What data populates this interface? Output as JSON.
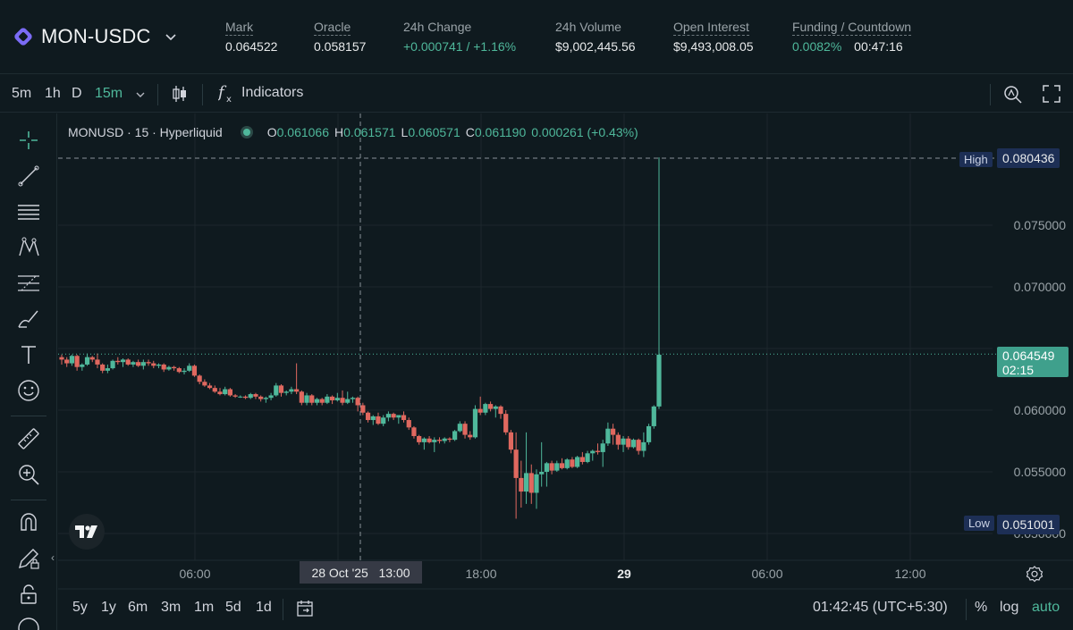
{
  "header": {
    "pair": "MON-USDC",
    "stats": [
      {
        "label": "Mark",
        "value": "0.064522"
      },
      {
        "label": "Oracle",
        "value": "0.058157"
      },
      {
        "label": "24h Change",
        "value": "+0.000741 / +1.16%"
      },
      {
        "label": "24h Volume",
        "value": "$9,002,445.56"
      },
      {
        "label": "Open Interest",
        "value": "$9,493,008.05"
      },
      {
        "label": "Funding / Countdown",
        "value": "0.0082%",
        "value2": "00:47:16"
      }
    ]
  },
  "toolbar": {
    "intervals": [
      "5m",
      "1h",
      "D",
      "15m"
    ],
    "active_interval": "15m",
    "indicators_label": "Indicators"
  },
  "legend": {
    "symbol": "MONUSD · 15 · Hyperliquid",
    "o_label": "O",
    "o": "0.061066",
    "h_label": "H",
    "h": "0.061571",
    "l_label": "L",
    "l": "0.060571",
    "c_label": "C",
    "c": "0.061190",
    "change": "0.000261 (+0.43%)"
  },
  "price_axis": {
    "ticks": [
      "0.075000",
      "0.070000",
      "0.060000",
      "0.055000",
      "0.050000"
    ],
    "high_label": "High",
    "high_value": "0.080436",
    "low_label": "Low",
    "low_value": "0.051001",
    "last_price": "0.064549",
    "countdown": "02:15"
  },
  "time_axis": {
    "ticks": [
      "06:00",
      "18:00",
      "29",
      "06:00",
      "12:00"
    ],
    "crosshair_label": "28 Oct '25   13:00"
  },
  "range_bar": {
    "ranges": [
      "5y",
      "1y",
      "6m",
      "3m",
      "1m",
      "5d",
      "1d"
    ],
    "clock": "01:42:45 (UTC+5:30)",
    "percent": "%",
    "log": "log",
    "auto": "auto"
  },
  "colors": {
    "up": "#4fb89b",
    "down": "#e0685f",
    "background": "#0f1a1f",
    "grid": "#1c272c",
    "tag_blue": "#1d2f55"
  },
  "chart_data": {
    "type": "candlestick",
    "y_range": [
      0.0486,
      0.0825
    ],
    "candles": [
      {
        "o": 0.0643,
        "h": 0.0645,
        "l": 0.0637,
        "c": 0.0641
      },
      {
        "o": 0.0641,
        "h": 0.0643,
        "l": 0.0635,
        "c": 0.0638
      },
      {
        "o": 0.0638,
        "h": 0.0645,
        "l": 0.0636,
        "c": 0.0644
      },
      {
        "o": 0.0644,
        "h": 0.0645,
        "l": 0.0632,
        "c": 0.0635
      },
      {
        "o": 0.0635,
        "h": 0.0638,
        "l": 0.0632,
        "c": 0.0637
      },
      {
        "o": 0.0637,
        "h": 0.0646,
        "l": 0.0636,
        "c": 0.0643
      },
      {
        "o": 0.0643,
        "h": 0.0644,
        "l": 0.0639,
        "c": 0.0641
      },
      {
        "o": 0.0641,
        "h": 0.0646,
        "l": 0.0634,
        "c": 0.0637
      },
      {
        "o": 0.0637,
        "h": 0.0638,
        "l": 0.063,
        "c": 0.0632
      },
      {
        "o": 0.0632,
        "h": 0.0637,
        "l": 0.063,
        "c": 0.0634
      },
      {
        "o": 0.0634,
        "h": 0.0641,
        "l": 0.0633,
        "c": 0.064
      },
      {
        "o": 0.064,
        "h": 0.0643,
        "l": 0.0637,
        "c": 0.0639
      },
      {
        "o": 0.0639,
        "h": 0.0642,
        "l": 0.0635,
        "c": 0.0641
      },
      {
        "o": 0.0641,
        "h": 0.0642,
        "l": 0.0636,
        "c": 0.0637
      },
      {
        "o": 0.0637,
        "h": 0.064,
        "l": 0.0635,
        "c": 0.0639
      },
      {
        "o": 0.0639,
        "h": 0.0641,
        "l": 0.0635,
        "c": 0.0636
      },
      {
        "o": 0.0636,
        "h": 0.0641,
        "l": 0.0633,
        "c": 0.0639
      },
      {
        "o": 0.0639,
        "h": 0.0641,
        "l": 0.0636,
        "c": 0.0638
      },
      {
        "o": 0.0638,
        "h": 0.064,
        "l": 0.0634,
        "c": 0.0636
      },
      {
        "o": 0.0636,
        "h": 0.0638,
        "l": 0.0634,
        "c": 0.0637
      },
      {
        "o": 0.0637,
        "h": 0.0638,
        "l": 0.0631,
        "c": 0.0633
      },
      {
        "o": 0.0633,
        "h": 0.0636,
        "l": 0.0632,
        "c": 0.0635
      },
      {
        "o": 0.0635,
        "h": 0.0636,
        "l": 0.0632,
        "c": 0.0634
      },
      {
        "o": 0.0634,
        "h": 0.0635,
        "l": 0.063,
        "c": 0.0631
      },
      {
        "o": 0.0631,
        "h": 0.0634,
        "l": 0.0629,
        "c": 0.0632
      },
      {
        "o": 0.0632,
        "h": 0.0638,
        "l": 0.0631,
        "c": 0.0636
      },
      {
        "o": 0.0636,
        "h": 0.0637,
        "l": 0.0627,
        "c": 0.0628
      },
      {
        "o": 0.0628,
        "h": 0.0629,
        "l": 0.0621,
        "c": 0.0623
      },
      {
        "o": 0.0623,
        "h": 0.0625,
        "l": 0.0619,
        "c": 0.062
      },
      {
        "o": 0.062,
        "h": 0.0622,
        "l": 0.0617,
        "c": 0.0618
      },
      {
        "o": 0.0618,
        "h": 0.062,
        "l": 0.0614,
        "c": 0.0615
      },
      {
        "o": 0.0615,
        "h": 0.0618,
        "l": 0.0612,
        "c": 0.0613
      },
      {
        "o": 0.0613,
        "h": 0.0619,
        "l": 0.0612,
        "c": 0.0617
      },
      {
        "o": 0.0617,
        "h": 0.0618,
        "l": 0.0611,
        "c": 0.0612
      },
      {
        "o": 0.0612,
        "h": 0.0613,
        "l": 0.061,
        "c": 0.0611
      },
      {
        "o": 0.0611,
        "h": 0.0612,
        "l": 0.061,
        "c": 0.0611
      },
      {
        "o": 0.0611,
        "h": 0.0612,
        "l": 0.0609,
        "c": 0.061
      },
      {
        "o": 0.061,
        "h": 0.0614,
        "l": 0.0609,
        "c": 0.0613
      },
      {
        "o": 0.0613,
        "h": 0.0614,
        "l": 0.0609,
        "c": 0.0611
      },
      {
        "o": 0.0611,
        "h": 0.0612,
        "l": 0.0607,
        "c": 0.0609
      },
      {
        "o": 0.0609,
        "h": 0.0611,
        "l": 0.0606,
        "c": 0.061
      },
      {
        "o": 0.061,
        "h": 0.0614,
        "l": 0.0608,
        "c": 0.0612
      },
      {
        "o": 0.0612,
        "h": 0.0622,
        "l": 0.0611,
        "c": 0.062
      },
      {
        "o": 0.062,
        "h": 0.0621,
        "l": 0.0611,
        "c": 0.0614
      },
      {
        "o": 0.0614,
        "h": 0.0616,
        "l": 0.0612,
        "c": 0.0615
      },
      {
        "o": 0.0615,
        "h": 0.0619,
        "l": 0.0613,
        "c": 0.0617
      },
      {
        "o": 0.0617,
        "h": 0.0638,
        "l": 0.0613,
        "c": 0.0615
      },
      {
        "o": 0.0615,
        "h": 0.0616,
        "l": 0.0604,
        "c": 0.0606
      },
      {
        "o": 0.0606,
        "h": 0.0614,
        "l": 0.0604,
        "c": 0.0612
      },
      {
        "o": 0.0612,
        "h": 0.0613,
        "l": 0.0604,
        "c": 0.0606
      },
      {
        "o": 0.0606,
        "h": 0.061,
        "l": 0.0604,
        "c": 0.0609
      },
      {
        "o": 0.0609,
        "h": 0.061,
        "l": 0.0604,
        "c": 0.0606
      },
      {
        "o": 0.0606,
        "h": 0.0613,
        "l": 0.0605,
        "c": 0.0611
      },
      {
        "o": 0.0611,
        "h": 0.0612,
        "l": 0.0605,
        "c": 0.0608
      },
      {
        "o": 0.0608,
        "h": 0.0614,
        "l": 0.0607,
        "c": 0.061
      },
      {
        "o": 0.061,
        "h": 0.0616,
        "l": 0.0604,
        "c": 0.0606
      },
      {
        "o": 0.0606,
        "h": 0.0615,
        "l": 0.0605,
        "c": 0.0609
      },
      {
        "o": 0.0609,
        "h": 0.0611,
        "l": 0.0606,
        "c": 0.061
      },
      {
        "o": 0.061,
        "h": 0.0611,
        "l": 0.0599,
        "c": 0.0604
      },
      {
        "o": 0.0604,
        "h": 0.0606,
        "l": 0.0596,
        "c": 0.0598
      },
      {
        "o": 0.0598,
        "h": 0.0599,
        "l": 0.059,
        "c": 0.0592
      },
      {
        "o": 0.0592,
        "h": 0.0596,
        "l": 0.0588,
        "c": 0.0595
      },
      {
        "o": 0.0595,
        "h": 0.0598,
        "l": 0.0588,
        "c": 0.0589
      },
      {
        "o": 0.0589,
        "h": 0.0596,
        "l": 0.0587,
        "c": 0.0594
      },
      {
        "o": 0.0594,
        "h": 0.0599,
        "l": 0.0591,
        "c": 0.0597
      },
      {
        "o": 0.0597,
        "h": 0.0598,
        "l": 0.0592,
        "c": 0.0594
      },
      {
        "o": 0.0594,
        "h": 0.0596,
        "l": 0.0589,
        "c": 0.0596
      },
      {
        "o": 0.0596,
        "h": 0.0599,
        "l": 0.059,
        "c": 0.0592
      },
      {
        "o": 0.0592,
        "h": 0.0594,
        "l": 0.0584,
        "c": 0.0586
      },
      {
        "o": 0.0586,
        "h": 0.0587,
        "l": 0.0577,
        "c": 0.0579
      },
      {
        "o": 0.0579,
        "h": 0.058,
        "l": 0.0572,
        "c": 0.0574
      },
      {
        "o": 0.0574,
        "h": 0.0578,
        "l": 0.0568,
        "c": 0.0577
      },
      {
        "o": 0.0577,
        "h": 0.0579,
        "l": 0.0573,
        "c": 0.0574
      },
      {
        "o": 0.0574,
        "h": 0.0578,
        "l": 0.0566,
        "c": 0.0576
      },
      {
        "o": 0.0576,
        "h": 0.0578,
        "l": 0.0573,
        "c": 0.0575
      },
      {
        "o": 0.0575,
        "h": 0.0578,
        "l": 0.0573,
        "c": 0.0577
      },
      {
        "o": 0.0577,
        "h": 0.0578,
        "l": 0.0574,
        "c": 0.0576
      },
      {
        "o": 0.0576,
        "h": 0.0584,
        "l": 0.0575,
        "c": 0.0583
      },
      {
        "o": 0.0583,
        "h": 0.0591,
        "l": 0.0582,
        "c": 0.0589
      },
      {
        "o": 0.0589,
        "h": 0.0591,
        "l": 0.0577,
        "c": 0.058
      },
      {
        "o": 0.058,
        "h": 0.0583,
        "l": 0.0576,
        "c": 0.0578
      },
      {
        "o": 0.0578,
        "h": 0.0604,
        "l": 0.0577,
        "c": 0.0601
      },
      {
        "o": 0.0601,
        "h": 0.0611,
        "l": 0.0596,
        "c": 0.0598
      },
      {
        "o": 0.0598,
        "h": 0.0606,
        "l": 0.0596,
        "c": 0.0605
      },
      {
        "o": 0.0605,
        "h": 0.0607,
        "l": 0.0599,
        "c": 0.0601
      },
      {
        "o": 0.0601,
        "h": 0.0604,
        "l": 0.0594,
        "c": 0.0603
      },
      {
        "o": 0.0603,
        "h": 0.0604,
        "l": 0.0593,
        "c": 0.0597
      },
      {
        "o": 0.0597,
        "h": 0.06,
        "l": 0.058,
        "c": 0.0582
      },
      {
        "o": 0.0582,
        "h": 0.0584,
        "l": 0.0565,
        "c": 0.0568
      },
      {
        "o": 0.0568,
        "h": 0.0582,
        "l": 0.0512,
        "c": 0.0545
      },
      {
        "o": 0.0545,
        "h": 0.0559,
        "l": 0.0521,
        "c": 0.0534
      },
      {
        "o": 0.0534,
        "h": 0.0582,
        "l": 0.0524,
        "c": 0.0549
      },
      {
        "o": 0.0549,
        "h": 0.0556,
        "l": 0.0524,
        "c": 0.0533
      },
      {
        "o": 0.0533,
        "h": 0.0552,
        "l": 0.052,
        "c": 0.0548
      },
      {
        "o": 0.0548,
        "h": 0.0574,
        "l": 0.0538,
        "c": 0.055
      },
      {
        "o": 0.055,
        "h": 0.0558,
        "l": 0.0538,
        "c": 0.0557
      },
      {
        "o": 0.0557,
        "h": 0.0559,
        "l": 0.0548,
        "c": 0.0551
      },
      {
        "o": 0.0551,
        "h": 0.0559,
        "l": 0.055,
        "c": 0.0557
      },
      {
        "o": 0.0557,
        "h": 0.0561,
        "l": 0.0552,
        "c": 0.0553
      },
      {
        "o": 0.0553,
        "h": 0.0561,
        "l": 0.0552,
        "c": 0.056
      },
      {
        "o": 0.056,
        "h": 0.0562,
        "l": 0.0553,
        "c": 0.0554
      },
      {
        "o": 0.0554,
        "h": 0.0563,
        "l": 0.0553,
        "c": 0.0562
      },
      {
        "o": 0.0562,
        "h": 0.0566,
        "l": 0.0556,
        "c": 0.0558
      },
      {
        "o": 0.0558,
        "h": 0.0567,
        "l": 0.0557,
        "c": 0.0565
      },
      {
        "o": 0.0565,
        "h": 0.0568,
        "l": 0.0559,
        "c": 0.0567
      },
      {
        "o": 0.0567,
        "h": 0.0573,
        "l": 0.0564,
        "c": 0.0566
      },
      {
        "o": 0.0566,
        "h": 0.0576,
        "l": 0.0554,
        "c": 0.0573
      },
      {
        "o": 0.0573,
        "h": 0.059,
        "l": 0.0571,
        "c": 0.0585
      },
      {
        "o": 0.0585,
        "h": 0.0589,
        "l": 0.0572,
        "c": 0.058
      },
      {
        "o": 0.058,
        "h": 0.0582,
        "l": 0.0568,
        "c": 0.0572
      },
      {
        "o": 0.0572,
        "h": 0.0579,
        "l": 0.0566,
        "c": 0.0577
      },
      {
        "o": 0.0577,
        "h": 0.0579,
        "l": 0.0568,
        "c": 0.057
      },
      {
        "o": 0.057,
        "h": 0.0577,
        "l": 0.0569,
        "c": 0.0576
      },
      {
        "o": 0.0576,
        "h": 0.0577,
        "l": 0.0564,
        "c": 0.0567
      },
      {
        "o": 0.0567,
        "h": 0.0582,
        "l": 0.0562,
        "c": 0.0574
      },
      {
        "o": 0.0574,
        "h": 0.0589,
        "l": 0.0572,
        "c": 0.0587
      },
      {
        "o": 0.0587,
        "h": 0.0604,
        "l": 0.0585,
        "c": 0.0603
      },
      {
        "o": 0.0603,
        "h": 0.0805,
        "l": 0.0601,
        "c": 0.0645
      }
    ]
  }
}
